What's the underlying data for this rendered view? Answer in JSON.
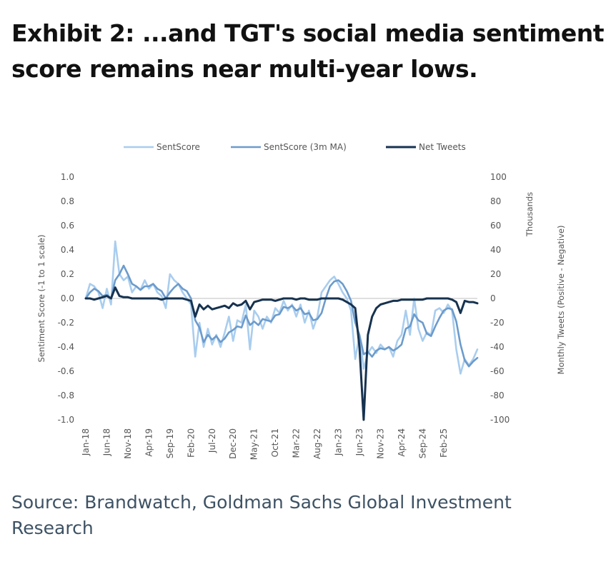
{
  "title": {
    "line1": "Exhibit 2: ...and TGT's social media sentiment",
    "line2": "score remains near multi-year lows."
  },
  "source": {
    "line1": "Source: Brandwatch, Goldman Sachs Global Investment",
    "line2": "Research"
  },
  "chart_data": {
    "type": "line",
    "legend_position": "top",
    "grid": false,
    "x_tick_labels": [
      "Jan-18",
      "Jun-18",
      "Nov-18",
      "Apr-19",
      "Sep-19",
      "Feb-20",
      "Jul-20",
      "Dec-20",
      "May-21",
      "Oct-21",
      "Mar-22",
      "Aug-22",
      "Jan-23",
      "Jun-23",
      "Nov-23",
      "Apr-24",
      "Sep-24",
      "Feb-25"
    ],
    "x_tick_step_months": 5,
    "n_points": 94,
    "y_left": {
      "label": "Sentiment Score (-1 to 1 scale)",
      "range": [
        -1.0,
        1.0
      ],
      "ticks": [
        "1.0",
        "0.8",
        "0.6",
        "0.4",
        "0.2",
        "0.0",
        "-0.2",
        "-0.4",
        "-0.6",
        "-0.8",
        "-1.0"
      ]
    },
    "y_right": {
      "label": "Monthly Tweets (Positive - Negative)",
      "unit_label": "Thousands",
      "range": [
        -100,
        100
      ],
      "ticks": [
        "100",
        "80",
        "60",
        "40",
        "20",
        "0",
        "-20",
        "-40",
        "-60",
        "-80",
        "-100"
      ]
    },
    "series": [
      {
        "name": "SentScore",
        "axis": "left",
        "color": "#a9cdee",
        "values": [
          0.0,
          0.12,
          0.1,
          0.05,
          -0.08,
          0.08,
          -0.05,
          0.47,
          0.2,
          0.15,
          0.18,
          0.05,
          0.1,
          0.07,
          0.15,
          0.08,
          0.12,
          0.05,
          0.02,
          -0.08,
          0.2,
          0.15,
          0.12,
          0.05,
          0.0,
          -0.05,
          -0.48,
          -0.2,
          -0.4,
          -0.25,
          -0.38,
          -0.3,
          -0.4,
          -0.28,
          -0.15,
          -0.35,
          -0.18,
          -0.2,
          -0.05,
          -0.42,
          -0.1,
          -0.15,
          -0.25,
          -0.15,
          -0.2,
          -0.08,
          -0.12,
          -0.02,
          -0.1,
          -0.05,
          -0.15,
          -0.05,
          -0.2,
          -0.1,
          -0.25,
          -0.15,
          0.05,
          0.1,
          0.15,
          0.18,
          0.12,
          0.05,
          0.0,
          -0.1,
          -0.5,
          -0.3,
          -0.58,
          -0.45,
          -0.4,
          -0.45,
          -0.38,
          -0.42,
          -0.4,
          -0.48,
          -0.35,
          -0.3,
          -0.1,
          -0.3,
          0.0,
          -0.25,
          -0.35,
          -0.28,
          -0.3,
          -0.1,
          -0.08,
          -0.12,
          -0.05,
          -0.1,
          -0.42,
          -0.62,
          -0.5,
          -0.55,
          -0.5,
          -0.42
        ]
      },
      {
        "name": "SentScore (3m MA)",
        "axis": "left",
        "color": "#6c9bcc",
        "values": [
          0.0,
          0.05,
          0.08,
          0.06,
          0.02,
          0.03,
          0.0,
          0.15,
          0.2,
          0.27,
          0.2,
          0.12,
          0.1,
          0.07,
          0.1,
          0.1,
          0.12,
          0.08,
          0.06,
          0.0,
          0.05,
          0.09,
          0.12,
          0.08,
          0.06,
          0.0,
          -0.18,
          -0.24,
          -0.36,
          -0.3,
          -0.34,
          -0.31,
          -0.36,
          -0.33,
          -0.28,
          -0.26,
          -0.23,
          -0.24,
          -0.14,
          -0.22,
          -0.19,
          -0.22,
          -0.17,
          -0.18,
          -0.19,
          -0.14,
          -0.13,
          -0.07,
          -0.08,
          -0.06,
          -0.1,
          -0.08,
          -0.13,
          -0.12,
          -0.18,
          -0.17,
          -0.12,
          0.0,
          0.1,
          0.14,
          0.15,
          0.12,
          0.06,
          -0.02,
          -0.2,
          -0.3,
          -0.46,
          -0.44,
          -0.48,
          -0.43,
          -0.41,
          -0.42,
          -0.4,
          -0.43,
          -0.41,
          -0.38,
          -0.25,
          -0.23,
          -0.13,
          -0.18,
          -0.2,
          -0.29,
          -0.31,
          -0.23,
          -0.16,
          -0.1,
          -0.08,
          -0.09,
          -0.19,
          -0.38,
          -0.51,
          -0.56,
          -0.52,
          -0.49
        ]
      },
      {
        "name": "Net Tweets",
        "axis": "right",
        "color": "#16324f",
        "values": [
          0,
          0,
          -1,
          0,
          1,
          2,
          0,
          9,
          2,
          1,
          1,
          0,
          0,
          0,
          0,
          0,
          0,
          0,
          -1,
          0,
          0,
          0,
          0,
          0,
          -1,
          -2,
          -15,
          -5,
          -9,
          -6,
          -9,
          -8,
          -7,
          -6,
          -8,
          -4,
          -6,
          -5,
          -2,
          -9,
          -3,
          -2,
          -1,
          -1,
          -1,
          -2,
          -1,
          0,
          0,
          0,
          -1,
          0,
          0,
          -1,
          -1,
          -1,
          0,
          0,
          0,
          0,
          0,
          -1,
          -3,
          -5,
          -8,
          -40,
          -100,
          -30,
          -15,
          -8,
          -5,
          -4,
          -3,
          -2,
          -2,
          -1,
          -1,
          -1,
          -1,
          -1,
          -1,
          0,
          0,
          0,
          0,
          0,
          0,
          -1,
          -3,
          -12,
          -2,
          -3,
          -3,
          -4
        ]
      }
    ]
  }
}
